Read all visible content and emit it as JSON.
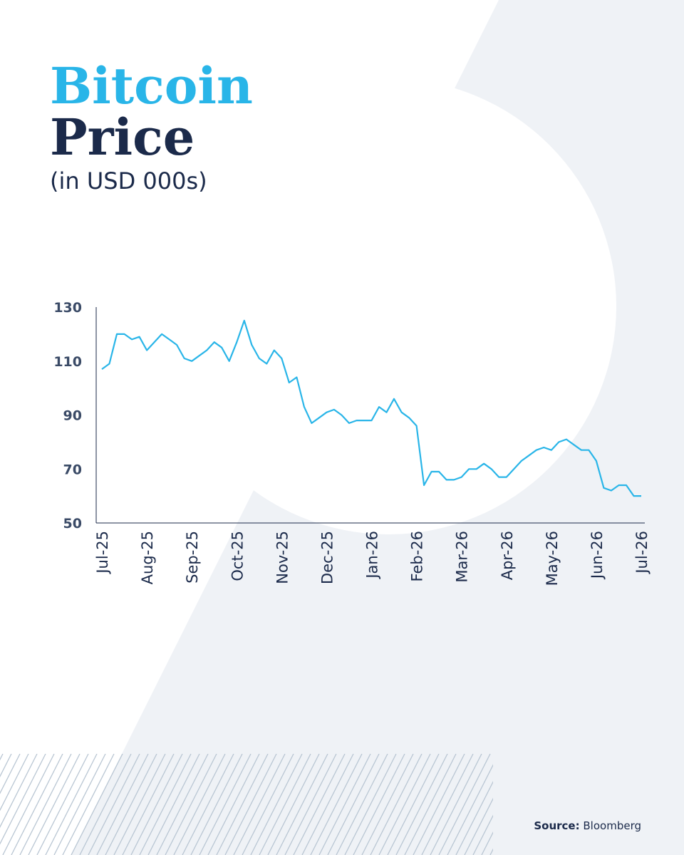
{
  "chart_data": {
    "type": "line",
    "title": {
      "accent": "Bitcoin",
      "main": "Price"
    },
    "subtitle": "(in USD 000s)",
    "source": {
      "label": "Source:",
      "name": "Bloomberg"
    },
    "categories": [
      "Jul-25",
      null,
      null,
      null,
      null,
      null,
      "Aug-25",
      null,
      null,
      null,
      null,
      null,
      "Sep-25",
      null,
      null,
      null,
      null,
      null,
      "Oct-25",
      null,
      null,
      null,
      null,
      null,
      "Nov-25",
      null,
      null,
      null,
      null,
      null,
      "Dec-25",
      null,
      null,
      null,
      null,
      null,
      "Jan-26",
      null,
      null,
      null,
      null,
      null,
      "Feb-26",
      null,
      null,
      null,
      null,
      null,
      "Mar-26",
      null,
      null,
      null,
      null,
      null,
      "Apr-26",
      null,
      null,
      null,
      null,
      null,
      "May-26",
      null,
      null,
      null,
      null,
      null,
      "Jun-26",
      null,
      null,
      null,
      null,
      null,
      "Jul-26"
    ],
    "series": [
      {
        "name": "Bitcoin",
        "color": "#29b5e8",
        "values": [
          107,
          109,
          120,
          120,
          118,
          119,
          114,
          117,
          120,
          118,
          116,
          111,
          110,
          112,
          114,
          117,
          115,
          110,
          117,
          125,
          116,
          111,
          109,
          114,
          111,
          102,
          104,
          93,
          87,
          89,
          91,
          92,
          90,
          87,
          88,
          88,
          88,
          93,
          91,
          96,
          91,
          89,
          86,
          64,
          69,
          69,
          66,
          66,
          67,
          70,
          70,
          72,
          70,
          67,
          67,
          70,
          73,
          75,
          77,
          78,
          77,
          80,
          81,
          79,
          77,
          77,
          73,
          63,
          62,
          64,
          64,
          60,
          60
        ]
      }
    ],
    "ylim": [
      50,
      130
    ],
    "yticks": [
      50,
      70,
      90,
      110,
      130
    ],
    "grid": false
  }
}
